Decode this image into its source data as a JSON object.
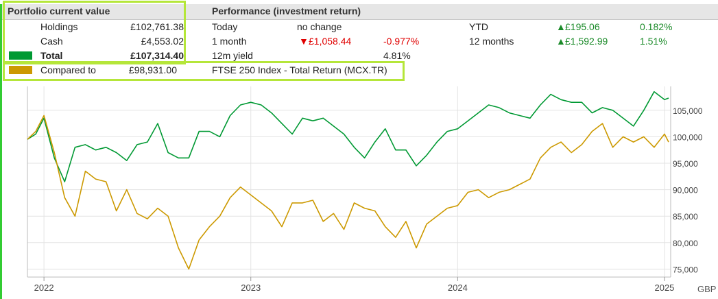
{
  "portfolio": {
    "header": "Portfolio current value",
    "rows": [
      {
        "label": "Holdings",
        "value": "£102,761.38"
      },
      {
        "label": "Cash",
        "value": "£4,553.02"
      }
    ],
    "total": {
      "label": "Total",
      "value": "£107,314.40",
      "swatch_color": "#009933"
    },
    "compared": {
      "label": "Compared to",
      "value": "£98,931.00",
      "swatch_color": "#cc9900",
      "benchmark": "FTSE 250 Index - Total Return (MCX.TR)"
    }
  },
  "performance": {
    "header": "Performance (investment return)",
    "today": {
      "label": "Today",
      "value": "no change"
    },
    "one_month": {
      "label": "1 month",
      "arrow": "▼",
      "value": "£1,058.44",
      "pct": "-0.977%"
    },
    "yield": {
      "label": "12m yield",
      "value": "4.81%"
    },
    "ytd": {
      "label": "YTD",
      "arrow": "▲",
      "value": "£195.06",
      "pct": "0.182%"
    },
    "twelve_months": {
      "label": "12 months",
      "arrow": "▲",
      "value": "£1,592.99",
      "pct": "1.51%"
    }
  },
  "chart_data": {
    "type": "line",
    "title": "",
    "xlabel": "",
    "ylabel": "GBP",
    "x_ticks": [
      "2022",
      "2023",
      "2024",
      "2025"
    ],
    "x_tick_values": [
      2022.0,
      2023.0,
      2024.0,
      2025.0
    ],
    "xlim": [
      2021.92,
      2025.03
    ],
    "y_ticks": [
      "75,000",
      "80,000",
      "85,000",
      "90,000",
      "95,000",
      "100,000",
      "105,000"
    ],
    "y_tick_values": [
      75000,
      80000,
      85000,
      90000,
      95000,
      100000,
      105000
    ],
    "ylim": [
      73500,
      109500
    ],
    "series": [
      {
        "name": "Portfolio",
        "color": "#009933",
        "x": [
          2021.92,
          2021.96,
          2022.0,
          2022.05,
          2022.1,
          2022.15,
          2022.2,
          2022.25,
          2022.3,
          2022.35,
          2022.4,
          2022.45,
          2022.5,
          2022.55,
          2022.6,
          2022.65,
          2022.7,
          2022.75,
          2022.8,
          2022.85,
          2022.9,
          2022.95,
          2023.0,
          2023.05,
          2023.1,
          2023.15,
          2023.2,
          2023.25,
          2023.3,
          2023.35,
          2023.4,
          2023.45,
          2023.5,
          2023.55,
          2023.6,
          2023.65,
          2023.7,
          2023.75,
          2023.8,
          2023.85,
          2023.9,
          2023.95,
          2024.0,
          2024.05,
          2024.1,
          2024.15,
          2024.2,
          2024.25,
          2024.3,
          2024.35,
          2024.4,
          2024.45,
          2024.5,
          2024.55,
          2024.6,
          2024.65,
          2024.7,
          2024.75,
          2024.8,
          2024.85,
          2024.9,
          2024.95,
          2025.0,
          2025.02
        ],
        "values": [
          99500,
          100500,
          103500,
          96000,
          91500,
          98000,
          98500,
          97500,
          98000,
          97000,
          95500,
          98500,
          99000,
          102500,
          97000,
          96000,
          96000,
          101000,
          101000,
          100000,
          104000,
          106000,
          106500,
          106000,
          104500,
          102500,
          100500,
          103500,
          103000,
          103500,
          102000,
          100500,
          98000,
          96000,
          99000,
          101500,
          97500,
          97500,
          94500,
          96500,
          99000,
          101000,
          101500,
          103000,
          104500,
          106000,
          105500,
          104500,
          104000,
          103500,
          106000,
          108000,
          107000,
          106500,
          106500,
          104500,
          105500,
          105000,
          103500,
          102000,
          105000,
          108500,
          107000,
          107300
        ]
      },
      {
        "name": "FTSE 250 Index - Total Return (MCX.TR)",
        "color": "#cc9900",
        "x": [
          2021.92,
          2021.96,
          2022.0,
          2022.05,
          2022.1,
          2022.15,
          2022.2,
          2022.25,
          2022.3,
          2022.35,
          2022.4,
          2022.45,
          2022.5,
          2022.55,
          2022.6,
          2022.65,
          2022.7,
          2022.75,
          2022.8,
          2022.85,
          2022.9,
          2022.95,
          2023.0,
          2023.05,
          2023.1,
          2023.15,
          2023.2,
          2023.25,
          2023.3,
          2023.35,
          2023.4,
          2023.45,
          2023.5,
          2023.55,
          2023.6,
          2023.65,
          2023.7,
          2023.75,
          2023.8,
          2023.85,
          2023.9,
          2023.95,
          2024.0,
          2024.05,
          2024.1,
          2024.15,
          2024.2,
          2024.25,
          2024.3,
          2024.35,
          2024.4,
          2024.45,
          2024.5,
          2024.55,
          2024.6,
          2024.65,
          2024.7,
          2024.75,
          2024.8,
          2024.85,
          2024.9,
          2024.95,
          2025.0,
          2025.02
        ],
        "values": [
          99500,
          101000,
          104000,
          97000,
          88500,
          85000,
          93500,
          92000,
          91500,
          86000,
          90000,
          85500,
          84500,
          86500,
          85000,
          79000,
          75000,
          80500,
          83000,
          85000,
          88500,
          90500,
          89000,
          87500,
          86000,
          83000,
          87500,
          87500,
          88000,
          84000,
          85500,
          82500,
          87500,
          86500,
          86000,
          83000,
          81000,
          84000,
          79000,
          83500,
          85000,
          86500,
          87000,
          89500,
          90000,
          88500,
          89500,
          90000,
          91000,
          92000,
          96000,
          98000,
          99000,
          97000,
          98500,
          101000,
          102500,
          98000,
          100000,
          99000,
          100000,
          98000,
          100500,
          99000
        ]
      }
    ]
  }
}
